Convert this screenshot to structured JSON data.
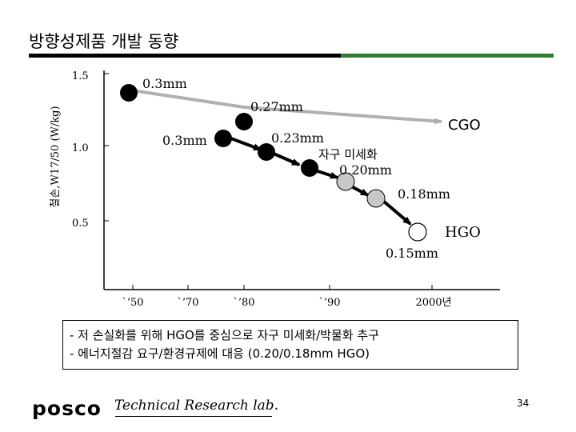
{
  "title": "방향성제품 개발 동향",
  "chart": {
    "y_axis_label": "철손,W17/50 (W/kg)",
    "y_ticks": [
      "1.5",
      "1.0",
      "0.5"
    ],
    "x_ticks": [
      "`’50",
      "`’70",
      "`’80",
      "`’90",
      "2000년"
    ],
    "cgo_label": "CGO",
    "hgo_label": "HGO",
    "refine_label": "자구 미세화",
    "annotations": [
      "0.3mm",
      "0.27mm",
      "0.3mm",
      "0.23mm",
      "0.20mm",
      "0.18mm",
      "0.15mm"
    ]
  },
  "notes": [
    "- 저 손실화를 위해 HGO를 중심으로 자구 미세화/박물화 추구",
    "- 에너지절감 요구/환경규제에 대응 (0.20/0.18mm HGO)"
  ],
  "footer": {
    "logo": "posco",
    "lab": "Technical Research lab.",
    "page": "34"
  },
  "colors": {
    "accent_green": "#2e7d32",
    "marker_dark": "#000000",
    "marker_grey": "#c8c8c8"
  }
}
